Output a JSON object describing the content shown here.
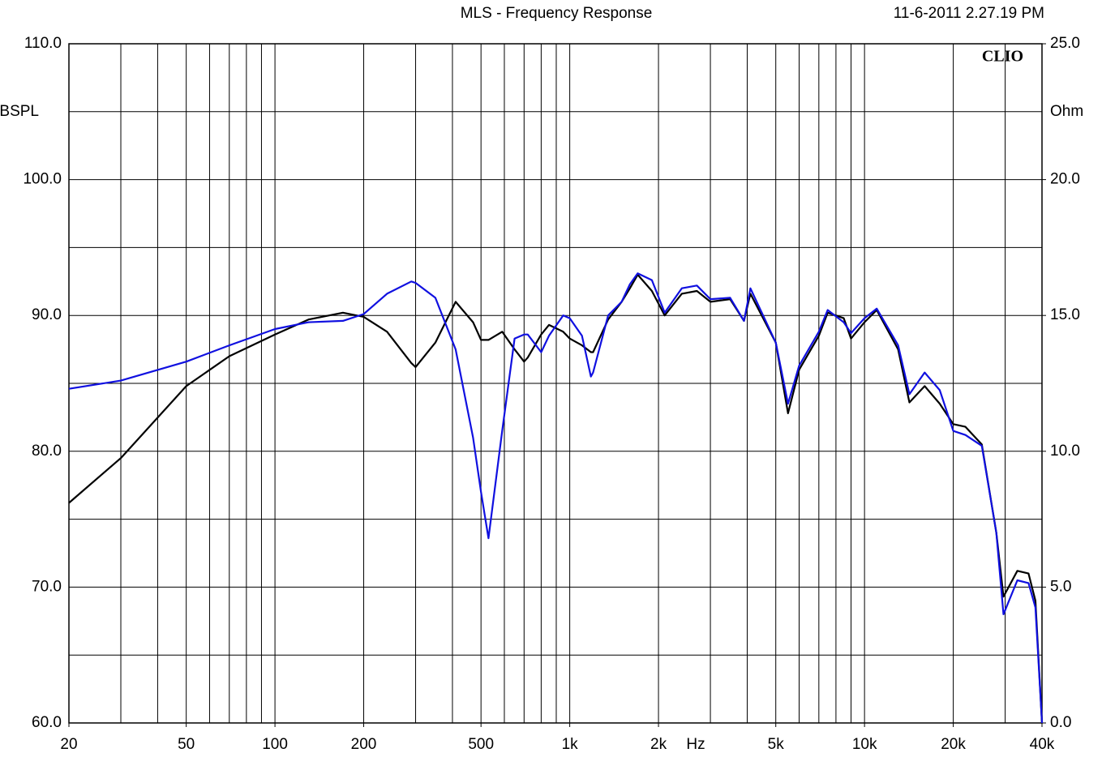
{
  "chart_data": {
    "type": "line",
    "title": "MLS - Frequency Response",
    "date": "11-6-2011 2.27.19 PM",
    "logo": "CLIO",
    "y_label": "dBSPL",
    "y2_label": "Ohm",
    "x_label": "Hz",
    "log_x": true,
    "grid": true,
    "xlim": [
      20,
      40000
    ],
    "ylim": [
      60,
      110
    ],
    "y2lim": [
      0,
      25
    ],
    "xticks": [
      20,
      50,
      100,
      200,
      500,
      {
        "value": 1000,
        "label": "1k"
      },
      {
        "value": 2000,
        "label": "2k"
      },
      {
        "value": 5000,
        "label": "5k"
      },
      {
        "value": 10000,
        "label": "10k"
      },
      {
        "value": 20000,
        "label": "20k"
      },
      {
        "value": 40000,
        "label": "40k"
      }
    ],
    "xgrid": [
      20,
      30,
      40,
      50,
      60,
      70,
      80,
      90,
      100,
      200,
      300,
      400,
      500,
      600,
      700,
      800,
      900,
      1000,
      2000,
      3000,
      4000,
      5000,
      6000,
      7000,
      8000,
      9000,
      10000,
      20000,
      30000,
      40000
    ],
    "yticks": [
      {
        "value": 60,
        "label": "60.0"
      },
      {
        "value": 70,
        "label": "70.0"
      },
      {
        "value": 80,
        "label": "80.0"
      },
      {
        "value": 90,
        "label": "90.0"
      },
      {
        "value": 100,
        "label": "100.0"
      },
      {
        "value": 110,
        "label": "110.0"
      }
    ],
    "ygrid_minor": [
      65,
      75,
      85,
      95,
      105
    ],
    "y2ticks": [
      {
        "value": 0,
        "label": "0.0"
      },
      {
        "value": 5,
        "label": "5.0"
      },
      {
        "value": 10,
        "label": "10.0"
      },
      {
        "value": 15,
        "label": "15.0"
      },
      {
        "value": 20,
        "label": "20.0"
      },
      {
        "value": 25,
        "label": "25.0"
      }
    ],
    "x": [
      20,
      30,
      50,
      70,
      100,
      130,
      170,
      200,
      240,
      290,
      300,
      350,
      410,
      470,
      500,
      530,
      590,
      650,
      700,
      720,
      800,
      850,
      950,
      1000,
      1100,
      1180,
      1200,
      1350,
      1500,
      1600,
      1700,
      1900,
      2100,
      2400,
      2700,
      3000,
      3500,
      3900,
      4100,
      5000,
      5500,
      6000,
      7000,
      7500,
      8500,
      9000,
      10000,
      11000,
      13000,
      14200,
      16000,
      18000,
      20000,
      22000,
      25000,
      28000,
      29600,
      33000,
      36000,
      38000,
      40000
    ],
    "series": [
      {
        "color": "#000000",
        "values": [
          76.2,
          79.5,
          84.8,
          87.0,
          88.6,
          89.7,
          90.2,
          89.9,
          88.8,
          86.5,
          86.2,
          88.0,
          91.0,
          89.5,
          88.2,
          88.2,
          88.8,
          87.5,
          86.6,
          86.9,
          88.6,
          89.3,
          88.8,
          88.3,
          87.8,
          87.3,
          87.3,
          89.7,
          91.0,
          92.0,
          93.0,
          91.8,
          90.0,
          91.6,
          91.8,
          91.0,
          91.2,
          89.6,
          91.6,
          88.0,
          82.8,
          86.0,
          88.5,
          90.2,
          89.8,
          88.3,
          89.5,
          90.4,
          87.5,
          83.6,
          84.8,
          83.5,
          82.0,
          81.8,
          80.5,
          74.0,
          69.3,
          71.2,
          71.0,
          69.0,
          60.0
        ]
      },
      {
        "color": "#1010e0",
        "values": [
          84.6,
          85.2,
          86.6,
          87.8,
          89.0,
          89.5,
          89.6,
          90.1,
          91.6,
          92.5,
          92.4,
          91.3,
          87.5,
          81.0,
          77.0,
          73.6,
          81.5,
          88.3,
          88.6,
          88.6,
          87.3,
          88.5,
          90.0,
          89.8,
          88.5,
          85.5,
          85.8,
          90.0,
          91.0,
          92.3,
          93.1,
          92.6,
          90.2,
          92.0,
          92.2,
          91.2,
          91.3,
          89.6,
          92.0,
          88.0,
          83.5,
          86.3,
          88.8,
          90.4,
          89.5,
          88.7,
          89.8,
          90.5,
          87.8,
          84.2,
          85.8,
          84.5,
          81.5,
          81.2,
          80.4,
          74.0,
          68.0,
          70.5,
          70.3,
          68.5,
          60.0
        ]
      }
    ]
  }
}
